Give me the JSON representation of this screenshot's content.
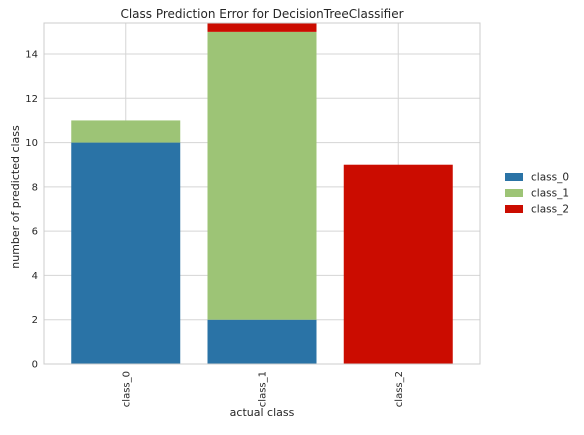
{
  "chart_data": {
    "type": "bar",
    "stacked": true,
    "title": "Class Prediction Error for DecisionTreeClassifier",
    "xlabel": "actual class",
    "ylabel": "number of predicted class",
    "categories": [
      "class_0",
      "class_1",
      "class_2"
    ],
    "series": [
      {
        "name": "class_0",
        "color": "#2a73a6",
        "values": [
          10,
          2,
          0
        ]
      },
      {
        "name": "class_1",
        "color": "#9dc476",
        "values": [
          1,
          13,
          0
        ]
      },
      {
        "name": "class_2",
        "color": "#cb0c00",
        "values": [
          0,
          1,
          9
        ]
      }
    ],
    "ylim": [
      0,
      15.4
    ],
    "yticks": [
      "0",
      "2",
      "4",
      "6",
      "8",
      "10",
      "12",
      "14"
    ],
    "grid": true,
    "legend_position": "center-right outside",
    "xtick_rotation": 90
  }
}
